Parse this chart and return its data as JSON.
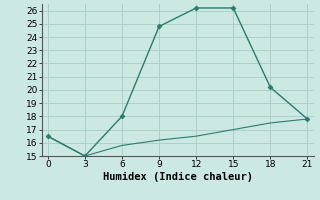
{
  "xlabel": "Humidex (Indice chaleur)",
  "x": [
    0,
    3,
    6,
    9,
    12,
    15,
    18,
    21
  ],
  "line1_y": [
    16.5,
    15.0,
    18.0,
    24.8,
    26.2,
    26.2,
    20.2,
    17.8
  ],
  "line2_y": [
    16.5,
    15.0,
    15.8,
    16.2,
    16.5,
    17.0,
    17.5,
    17.8
  ],
  "line_color": "#2a7d6e",
  "bg_color": "#cce8e2",
  "grid_color": "#aed0ca",
  "plot_bg_color": "#cce8e2",
  "xlim": [
    -0.5,
    21.5
  ],
  "ylim": [
    15,
    26.5
  ],
  "xticks": [
    0,
    3,
    6,
    9,
    12,
    15,
    18,
    21
  ],
  "yticks": [
    15,
    16,
    17,
    18,
    19,
    20,
    21,
    22,
    23,
    24,
    25,
    26
  ],
  "tick_fontsize": 6.5,
  "label_fontsize": 7.5,
  "marker": "D",
  "markersize": 2.5
}
